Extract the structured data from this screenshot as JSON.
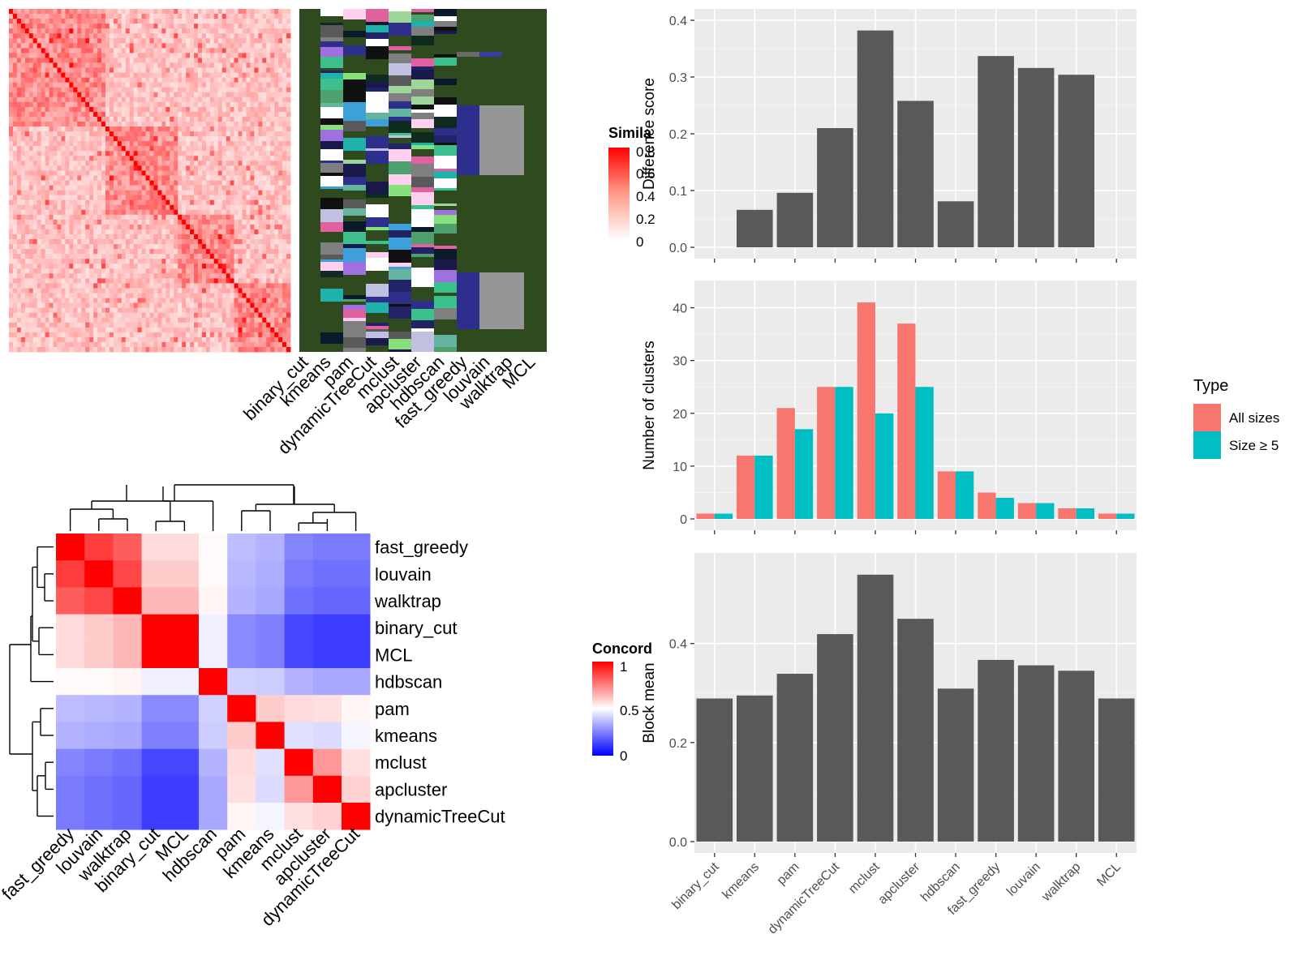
{
  "similarity_legend": {
    "title": "Simila",
    "ticks": [
      "0.8",
      "0.6",
      "0.4",
      "0.2",
      "0"
    ]
  },
  "method_column_labels": [
    "binary_cut",
    "kmeans",
    "pam",
    "dynamicTreeCut",
    "mclust",
    "apcluster",
    "hdbscan",
    "fast_greedy",
    "louvain",
    "walktrap",
    "MCL"
  ],
  "concordance_legend": {
    "title": "Concord",
    "ticks": [
      "1",
      "0.5",
      "0"
    ]
  },
  "legend_type": {
    "title": "Type",
    "items": [
      {
        "label": "All sizes",
        "color": "#F8766D"
      },
      {
        "label": "Size ≥ 5",
        "color": "#00BFC4"
      }
    ]
  },
  "colors": {
    "panel_bg": "#EBEBEB",
    "bar_dark": "#595959",
    "hot": "#FF0000",
    "cold": "#0000FF",
    "membership_bg": "#2F4A1F"
  },
  "chart_data": [
    {
      "type": "heatmap",
      "title": "Concordance",
      "rows": [
        "fast_greedy",
        "louvain",
        "walktrap",
        "binary_cut",
        "MCL",
        "hdbscan",
        "pam",
        "kmeans",
        "mclust",
        "apcluster",
        "dynamicTreeCut"
      ],
      "cols": [
        "fast_greedy",
        "louvain",
        "walktrap",
        "binary_cut",
        "MCL",
        "hdbscan",
        "pam",
        "kmeans",
        "mclust",
        "apcluster",
        "dynamicTreeCut"
      ],
      "values": [
        [
          1.0,
          0.88,
          0.82,
          0.57,
          0.57,
          0.51,
          0.37,
          0.35,
          0.26,
          0.24,
          0.24
        ],
        [
          0.88,
          1.0,
          0.86,
          0.6,
          0.6,
          0.51,
          0.36,
          0.34,
          0.24,
          0.22,
          0.22
        ],
        [
          0.82,
          0.86,
          1.0,
          0.64,
          0.64,
          0.52,
          0.35,
          0.33,
          0.22,
          0.2,
          0.2
        ],
        [
          0.57,
          0.6,
          0.64,
          1.0,
          1.0,
          0.47,
          0.27,
          0.25,
          0.14,
          0.12,
          0.12
        ],
        [
          0.57,
          0.6,
          0.64,
          1.0,
          1.0,
          0.47,
          0.27,
          0.25,
          0.14,
          0.12,
          0.12
        ],
        [
          0.51,
          0.51,
          0.52,
          0.47,
          0.47,
          1.0,
          0.41,
          0.4,
          0.35,
          0.33,
          0.33
        ],
        [
          0.37,
          0.36,
          0.35,
          0.27,
          0.27,
          0.41,
          1.0,
          0.6,
          0.57,
          0.56,
          0.52
        ],
        [
          0.35,
          0.34,
          0.33,
          0.25,
          0.25,
          0.4,
          0.6,
          1.0,
          0.44,
          0.43,
          0.48
        ],
        [
          0.26,
          0.24,
          0.22,
          0.14,
          0.14,
          0.35,
          0.57,
          0.44,
          1.0,
          0.7,
          0.56
        ],
        [
          0.24,
          0.22,
          0.2,
          0.12,
          0.12,
          0.33,
          0.56,
          0.43,
          0.7,
          1.0,
          0.59
        ],
        [
          0.24,
          0.22,
          0.2,
          0.12,
          0.12,
          0.33,
          0.52,
          0.48,
          0.56,
          0.59,
          1.0
        ]
      ],
      "legend": [
        "1",
        "0.5",
        "0"
      ]
    },
    {
      "type": "bar",
      "categories": [
        "binary_cut",
        "kmeans",
        "pam",
        "dynamicTreeCut",
        "mclust",
        "apcluster",
        "hdbscan",
        "fast_greedy",
        "louvain",
        "walktrap",
        "MCL"
      ],
      "values": [
        0,
        0.066,
        0.096,
        0.21,
        0.382,
        0.258,
        0.081,
        0.337,
        0.316,
        0.304,
        0
      ],
      "ylabel": "Difference score",
      "ylim": [
        0,
        0.4
      ],
      "yticks": [
        "0.0",
        "0.1",
        "0.2",
        "0.3",
        "0.4"
      ]
    },
    {
      "type": "bar",
      "categories": [
        "binary_cut",
        "kmeans",
        "pam",
        "dynamicTreeCut",
        "mclust",
        "apcluster",
        "hdbscan",
        "fast_greedy",
        "louvain",
        "walktrap",
        "MCL"
      ],
      "series": [
        {
          "name": "All sizes",
          "values": [
            1,
            12,
            21,
            25,
            41,
            37,
            9,
            5,
            3,
            2,
            1
          ]
        },
        {
          "name": "Size ≥ 5",
          "values": [
            1,
            12,
            17,
            25,
            20,
            25,
            9,
            4,
            3,
            2,
            1
          ]
        }
      ],
      "ylabel": "Number of clusters",
      "ylim": [
        0,
        43
      ],
      "yticks": [
        "0",
        "10",
        "20",
        "30",
        "40"
      ],
      "legend_title": "Type"
    },
    {
      "type": "bar",
      "categories": [
        "binary_cut",
        "kmeans",
        "pam",
        "dynamicTreeCut",
        "mclust",
        "apcluster",
        "hdbscan",
        "fast_greedy",
        "louvain",
        "walktrap",
        "MCL"
      ],
      "values": [
        0.289,
        0.295,
        0.339,
        0.419,
        0.539,
        0.45,
        0.309,
        0.367,
        0.356,
        0.345,
        0.289
      ],
      "ylabel": "Block mean",
      "ylim": [
        0,
        0.56
      ],
      "yticks": [
        "0.0",
        "0.2",
        "0.4"
      ]
    }
  ]
}
